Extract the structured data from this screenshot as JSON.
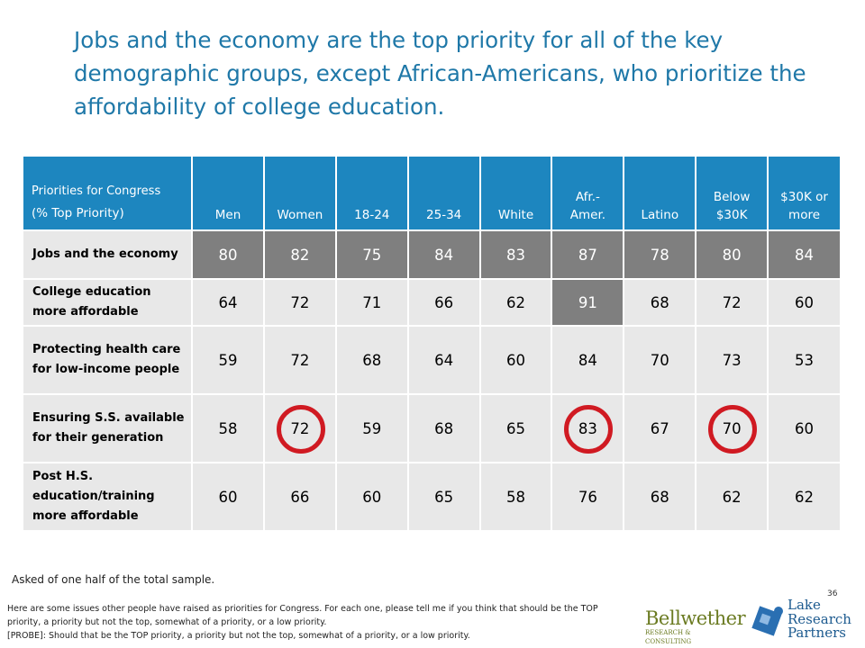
{
  "title": "Jobs and the economy are the top priority for all of the key demographic groups, except African-Americans, who prioritize the affordability of college education.",
  "table": {
    "row_header_line1": "Priorities for Congress",
    "row_header_line2": "(% Top Priority)",
    "columns": [
      "Men",
      "Women",
      "18-24",
      "25-34",
      "White",
      "Afr.-\nAmer.",
      "Latino",
      "Below\n$30K",
      "$30K or\nmore"
    ],
    "rows": [
      {
        "label": "Jobs and the economy",
        "values": [
          "80",
          "82",
          "75",
          "84",
          "83",
          "87",
          "78",
          "80",
          "84"
        ]
      },
      {
        "label": "College education more affordable",
        "values": [
          "64",
          "72",
          "71",
          "66",
          "62",
          "91",
          "68",
          "72",
          "60"
        ]
      },
      {
        "label": "Protecting health care for low-income people",
        "values": [
          "59",
          "72",
          "68",
          "64",
          "60",
          "84",
          "70",
          "73",
          "53"
        ]
      },
      {
        "label": "Ensuring S.S. available for their generation",
        "values": [
          "58",
          "72",
          "59",
          "68",
          "65",
          "83",
          "67",
          "70",
          "60"
        ]
      },
      {
        "label": "Post H.S. education/training more affordable",
        "values": [
          "60",
          "66",
          "60",
          "65",
          "58",
          "76",
          "68",
          "62",
          "62"
        ]
      }
    ],
    "highlighted": {
      "row": 0,
      "extra_cells": [
        [
          1,
          5
        ]
      ],
      "color": "#7f7f7f"
    },
    "circled_cells": [
      [
        3,
        1
      ],
      [
        3,
        5
      ],
      [
        3,
        7
      ]
    ],
    "circle_color": "#d01a22",
    "header_color": "#1d86bf"
  },
  "note": "Asked of one half of the total sample.",
  "page_number": "36",
  "question_text": "Here are some issues other people have raised as priorities for Congress.  For each one, please tell me if you think that should be the TOP priority, a priority but not the top, somewhat of a priority, or a low priority.\n[PROBE]: Should that be the TOP priority, a priority but not the top, somewhat of a priority, or a low priority.",
  "logos": {
    "bellwether_name": "Bellwether",
    "bellwether_sub": "RESEARCH & CONSULTING",
    "lake_research": "Lake\nResearch\nPartners"
  }
}
